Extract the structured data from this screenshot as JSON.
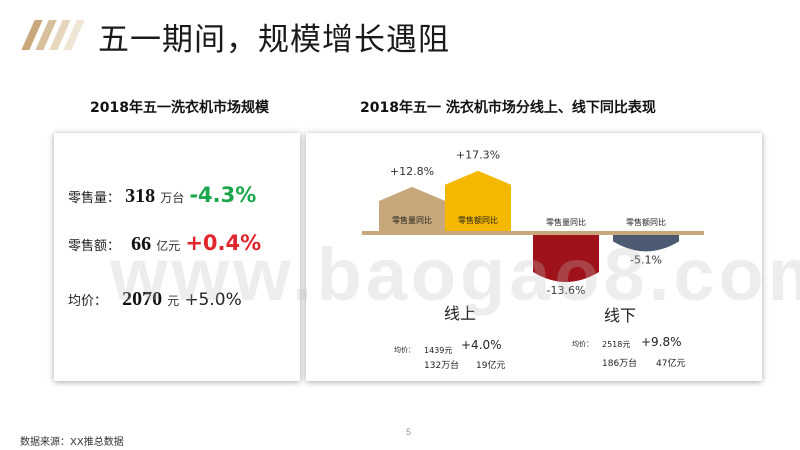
{
  "header": {
    "title": "五一期间，规模增长遇阻",
    "stripe_colors": [
      "#c8a77a",
      "#d8c09c",
      "#e6d6bd",
      "#f0e6d6"
    ]
  },
  "left": {
    "heading": "2018年五一洗衣机市场规模",
    "metrics": [
      {
        "label": "零售量：",
        "value": "318",
        "unit": "万台",
        "change": "-4.3%",
        "change_color": "#1aa64a"
      },
      {
        "label": "零售额：",
        "value": "66",
        "unit": "亿元",
        "change": "+0.4%",
        "change_color": "#e0262c"
      },
      {
        "label": "均价：",
        "value": "2070",
        "unit": "元",
        "change": "+5.0%",
        "change_color": "#222222"
      }
    ]
  },
  "right": {
    "heading": "2018年五一 洗衣机市场分线上、线下同比表现",
    "chart_data": {
      "type": "bar",
      "categories": [
        "线上 零售量同比",
        "线上 零售额同比",
        "线下 零售量同比",
        "线下 零售额同比"
      ],
      "values": [
        12.8,
        17.3,
        -13.6,
        -5.1
      ],
      "value_labels": [
        "+12.8%",
        "+17.3%",
        "-13.6%",
        "-5.1%"
      ],
      "bar_labels": [
        "零售量同比",
        "零售额同比",
        "零售量同比",
        "零售额同比"
      ],
      "colors": [
        "#c8a77a",
        "#f5b800",
        "#a0121a",
        "#4c5a72"
      ],
      "axis_color": "#c8a77a",
      "groups": [
        "线上",
        "线下"
      ]
    },
    "online": {
      "label": "线上",
      "price_label": "均价：",
      "price": "1439元",
      "price_change": "+4.0%",
      "volume": "132万台",
      "revenue": "19亿元"
    },
    "offline": {
      "label": "线下",
      "price_label": "均价：",
      "price": "2518元",
      "price_change": "+9.8%",
      "volume": "186万台",
      "revenue": "47亿元"
    }
  },
  "watermark": "www.baogao8.com",
  "footer": {
    "page": "5",
    "source": "数据来源：XX推总数据"
  }
}
